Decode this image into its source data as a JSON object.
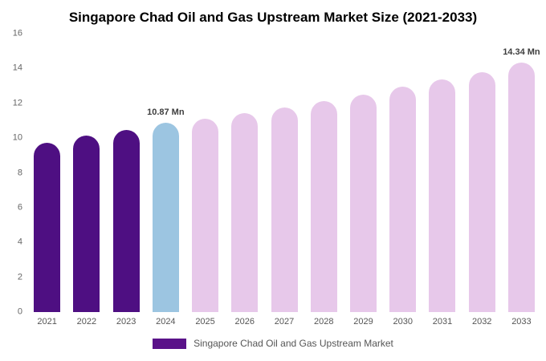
{
  "title": "Singapore Chad Oil and Gas Upstream Market Size (2021-2033)",
  "chart_data": {
    "type": "bar",
    "categories": [
      "2021",
      "2022",
      "2023",
      "2024",
      "2025",
      "2026",
      "2027",
      "2028",
      "2029",
      "2030",
      "2031",
      "2032",
      "2033"
    ],
    "values": [
      9.75,
      10.15,
      10.45,
      10.87,
      11.1,
      11.42,
      11.78,
      12.13,
      12.5,
      12.95,
      13.35,
      13.8,
      14.34
    ],
    "bar_colors": [
      "#4e0f82",
      "#4e0f82",
      "#4e0f82",
      "#9cc5e1",
      "#e7c8ea",
      "#e7c8ea",
      "#e7c8ea",
      "#e7c8ea",
      "#e7c8ea",
      "#e7c8ea",
      "#e7c8ea",
      "#e7c8ea",
      "#e7c8ea"
    ],
    "title": "Singapore Chad Oil and Gas Upstream Market Size (2021-2033)",
    "xlabel": "",
    "ylabel": "",
    "ylim": [
      0,
      16
    ],
    "ytick_step": 2,
    "grid": false,
    "legend_position": "bottom",
    "annotations": [
      {
        "category": "2024",
        "text": "10.87 Mn"
      },
      {
        "category": "2033",
        "text": "14.34 Mn"
      }
    ]
  },
  "legend": {
    "swatch_color": "#5a1289",
    "label": "Singapore Chad Oil and Gas Upstream Market"
  }
}
